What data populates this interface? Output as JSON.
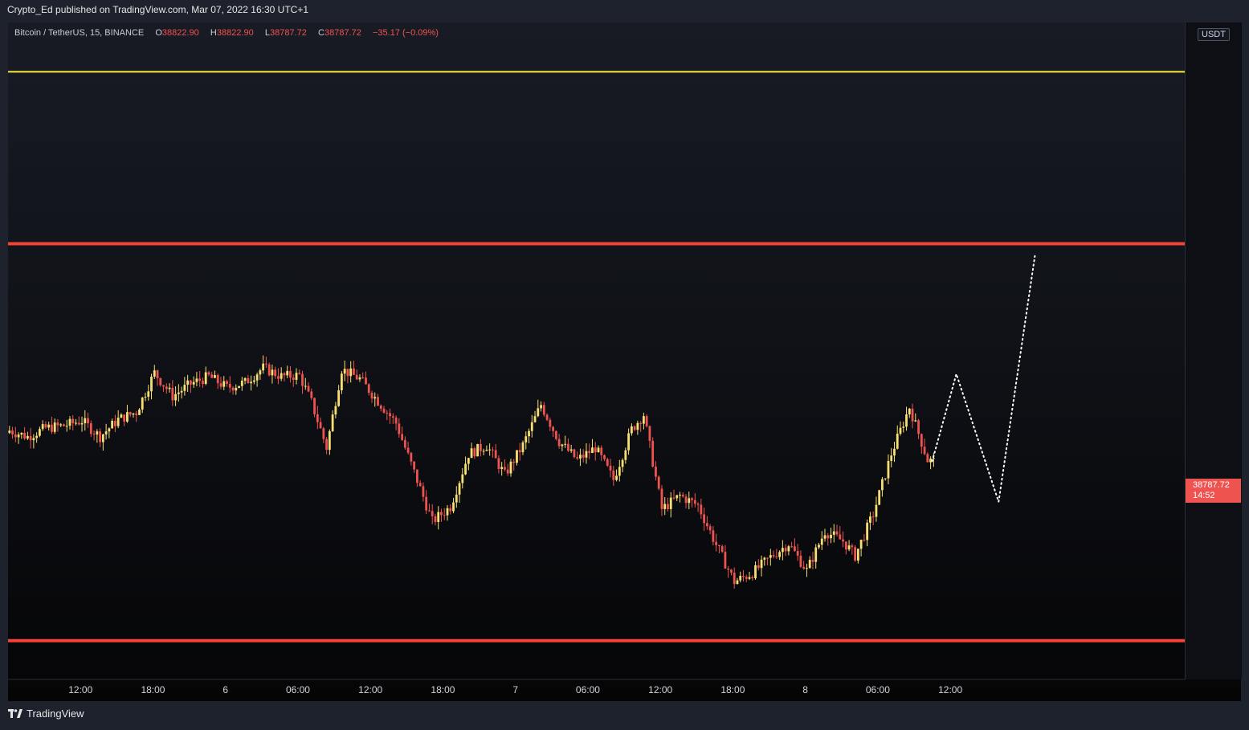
{
  "header": {
    "attribution": "Crypto_Ed published on TradingView.com, Mar 07, 2022 16:30 UTC+1"
  },
  "legend": {
    "symbol": "Bitcoin / TetherUS, 15, BINANCE",
    "open_label": "O",
    "open": "38822.90",
    "high_label": "H",
    "high": "38822.90",
    "low_label": "L",
    "low": "38787.72",
    "close_label": "C",
    "close": "38787.72",
    "change": "−35.17 (−0.09%)"
  },
  "unit_badge": "USDT",
  "last_price": {
    "value": "38787.72",
    "countdown": "14:52"
  },
  "footer": {
    "brand": "TradingView",
    "logo_icon": "tradingview-logo-icon"
  },
  "colors": {
    "up": "#f7e071",
    "down": "#ef5350",
    "resistance": "#ffeb3b",
    "levels": "#f44336",
    "projection": "#ffffff"
  },
  "chart_data": {
    "type": "candlestick",
    "interval": "15",
    "ylim": [
      37150,
      42550
    ],
    "y_ticks": [
      "37400.00",
      "37600.00",
      "37800.00",
      "38000.00",
      "38200.00",
      "38400.00",
      "38600.00",
      "38800.00",
      "39000.00",
      "39200.00",
      "39400.00",
      "39600.00",
      "39800.00",
      "40000.00",
      "40200.00",
      "40400.00",
      "40600.00",
      "40800.00",
      "41000.00",
      "41200.00",
      "41400.00",
      "41600.00",
      "41800.00",
      "42000.00",
      "42200.00",
      "42400.00"
    ],
    "x_tick_labels": [
      "12:00",
      "18:00",
      "6",
      "06:00",
      "12:00",
      "18:00",
      "7",
      "06:00",
      "12:00",
      "18:00",
      "8",
      "06:00",
      "12:00"
    ],
    "x_tick_slots": [
      24,
      48,
      72,
      96,
      120,
      144,
      168,
      192,
      216,
      240,
      264,
      288,
      312
    ],
    "x_slots_total": 312,
    "horizontal_levels": [
      {
        "price": 41960,
        "color": "#ffeb3b",
        "width": 2
      },
      {
        "price": 40560,
        "color": "#f44336",
        "width": 4
      },
      {
        "price": 37330,
        "color": "#f44336",
        "width": 4
      }
    ],
    "candles_start_slot": 0,
    "candles_close_path": [
      [
        0,
        39040
      ],
      [
        6,
        38990
      ],
      [
        12,
        39060
      ],
      [
        18,
        39080
      ],
      [
        24,
        39120
      ],
      [
        30,
        38990
      ],
      [
        36,
        39130
      ],
      [
        42,
        39190
      ],
      [
        48,
        39510
      ],
      [
        54,
        39320
      ],
      [
        60,
        39420
      ],
      [
        66,
        39480
      ],
      [
        72,
        39390
      ],
      [
        78,
        39430
      ],
      [
        84,
        39550
      ],
      [
        90,
        39480
      ],
      [
        96,
        39490
      ],
      [
        100,
        39270
      ],
      [
        105,
        38900
      ],
      [
        110,
        39540
      ],
      [
        116,
        39460
      ],
      [
        122,
        39280
      ],
      [
        128,
        39100
      ],
      [
        134,
        38700
      ],
      [
        140,
        38300
      ],
      [
        146,
        38420
      ],
      [
        152,
        38850
      ],
      [
        158,
        38920
      ],
      [
        164,
        38680
      ],
      [
        170,
        38920
      ],
      [
        176,
        39250
      ],
      [
        182,
        38950
      ],
      [
        188,
        38800
      ],
      [
        194,
        38900
      ],
      [
        200,
        38640
      ],
      [
        206,
        39050
      ],
      [
        210,
        39170
      ],
      [
        216,
        38400
      ],
      [
        222,
        38510
      ],
      [
        228,
        38430
      ],
      [
        234,
        38110
      ],
      [
        240,
        37810
      ],
      [
        246,
        37880
      ],
      [
        252,
        38010
      ],
      [
        258,
        38120
      ],
      [
        264,
        37900
      ],
      [
        270,
        38220
      ],
      [
        276,
        38140
      ],
      [
        280,
        38020
      ],
      [
        286,
        38360
      ],
      [
        292,
        38850
      ],
      [
        298,
        39230
      ],
      [
        304,
        38800
      ],
      [
        306,
        38790
      ]
    ],
    "projection_path": [
      [
        306,
        38790
      ],
      [
        314,
        39500
      ],
      [
        328,
        38460
      ],
      [
        340,
        40460
      ]
    ],
    "last_close": 38787.72
  }
}
